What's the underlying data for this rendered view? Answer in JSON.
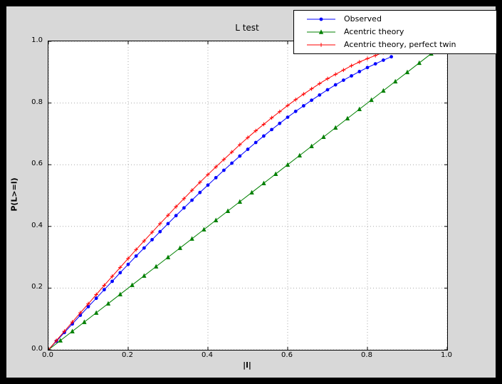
{
  "colors": {
    "window_bg": "#000000",
    "figure_bg": "#d8d8d8",
    "axes_bg": "#ffffff",
    "grid": "#aaaaaa",
    "text": "#000000"
  },
  "chart_data": {
    "type": "line",
    "title": "L test",
    "xlabel": "|l|",
    "ylabel": "P(L>=l)",
    "xlim": [
      0.0,
      1.0
    ],
    "ylim": [
      0.0,
      1.0
    ],
    "grid": "dotted",
    "legend_position": "upper right",
    "x_tick_values": [
      0.0,
      0.2,
      0.4,
      0.6,
      0.8,
      1.0
    ],
    "x_tick_labels": [
      "0.0",
      "0.2",
      "0.4",
      "0.6",
      "0.8",
      "1.0"
    ],
    "y_tick_values": [
      0.0,
      0.2,
      0.4,
      0.6,
      0.8,
      1.0
    ],
    "y_tick_labels": [
      "0.0",
      "0.2",
      "0.4",
      "0.6",
      "0.8",
      "1.0"
    ],
    "series": [
      {
        "name": "Observed",
        "color": "#0000ff",
        "marker": "circle",
        "x": [
          0.0,
          0.02,
          0.04,
          0.06,
          0.08,
          0.1,
          0.12,
          0.14,
          0.16,
          0.18,
          0.2,
          0.22,
          0.24,
          0.26,
          0.28,
          0.3,
          0.32,
          0.34,
          0.36,
          0.38,
          0.4,
          0.42,
          0.44,
          0.46,
          0.48,
          0.5,
          0.52,
          0.54,
          0.56,
          0.58,
          0.6,
          0.62,
          0.64,
          0.66,
          0.68,
          0.7,
          0.72,
          0.74,
          0.76,
          0.78,
          0.8,
          0.82,
          0.84,
          0.86
        ],
        "y": [
          0.0,
          0.028,
          0.056,
          0.084,
          0.112,
          0.14,
          0.167,
          0.195,
          0.222,
          0.25,
          0.277,
          0.304,
          0.33,
          0.357,
          0.383,
          0.409,
          0.435,
          0.46,
          0.485,
          0.51,
          0.534,
          0.558,
          0.582,
          0.605,
          0.628,
          0.65,
          0.672,
          0.693,
          0.714,
          0.734,
          0.754,
          0.773,
          0.791,
          0.809,
          0.826,
          0.843,
          0.859,
          0.874,
          0.888,
          0.902,
          0.915,
          0.927,
          0.939,
          0.95
        ]
      },
      {
        "name": "Acentric theory",
        "color": "#008000",
        "marker": "triangle",
        "x": [
          0.0,
          0.03,
          0.06,
          0.09,
          0.12,
          0.15,
          0.18,
          0.21,
          0.24,
          0.27,
          0.3,
          0.33,
          0.36,
          0.39,
          0.42,
          0.45,
          0.48,
          0.51,
          0.54,
          0.57,
          0.6,
          0.63,
          0.66,
          0.69,
          0.72,
          0.75,
          0.78,
          0.81,
          0.84,
          0.87,
          0.9,
          0.93,
          0.96
        ],
        "y": [
          0.0,
          0.03,
          0.06,
          0.09,
          0.12,
          0.15,
          0.18,
          0.21,
          0.24,
          0.27,
          0.3,
          0.33,
          0.36,
          0.39,
          0.42,
          0.45,
          0.48,
          0.51,
          0.54,
          0.57,
          0.6,
          0.63,
          0.66,
          0.69,
          0.72,
          0.75,
          0.78,
          0.81,
          0.84,
          0.87,
          0.9,
          0.93,
          0.96
        ]
      },
      {
        "name": "Acentric theory, perfect twin",
        "color": "#ff0000",
        "marker": "plus",
        "x": [
          0.0,
          0.02,
          0.04,
          0.06,
          0.08,
          0.1,
          0.12,
          0.14,
          0.16,
          0.18,
          0.2,
          0.22,
          0.24,
          0.26,
          0.28,
          0.3,
          0.32,
          0.34,
          0.36,
          0.38,
          0.4,
          0.42,
          0.44,
          0.46,
          0.48,
          0.5,
          0.52,
          0.54,
          0.56,
          0.58,
          0.6,
          0.62,
          0.64,
          0.66,
          0.68,
          0.7,
          0.72,
          0.74,
          0.76,
          0.78,
          0.8,
          0.82,
          0.84,
          0.86
        ],
        "y": [
          0.0,
          0.03,
          0.06,
          0.09,
          0.12,
          0.149,
          0.179,
          0.209,
          0.238,
          0.267,
          0.296,
          0.325,
          0.353,
          0.381,
          0.409,
          0.436,
          0.464,
          0.49,
          0.517,
          0.543,
          0.568,
          0.593,
          0.617,
          0.641,
          0.665,
          0.688,
          0.71,
          0.731,
          0.752,
          0.772,
          0.792,
          0.811,
          0.829,
          0.846,
          0.863,
          0.879,
          0.893,
          0.907,
          0.921,
          0.933,
          0.944,
          0.954,
          0.964,
          0.972
        ]
      }
    ]
  }
}
